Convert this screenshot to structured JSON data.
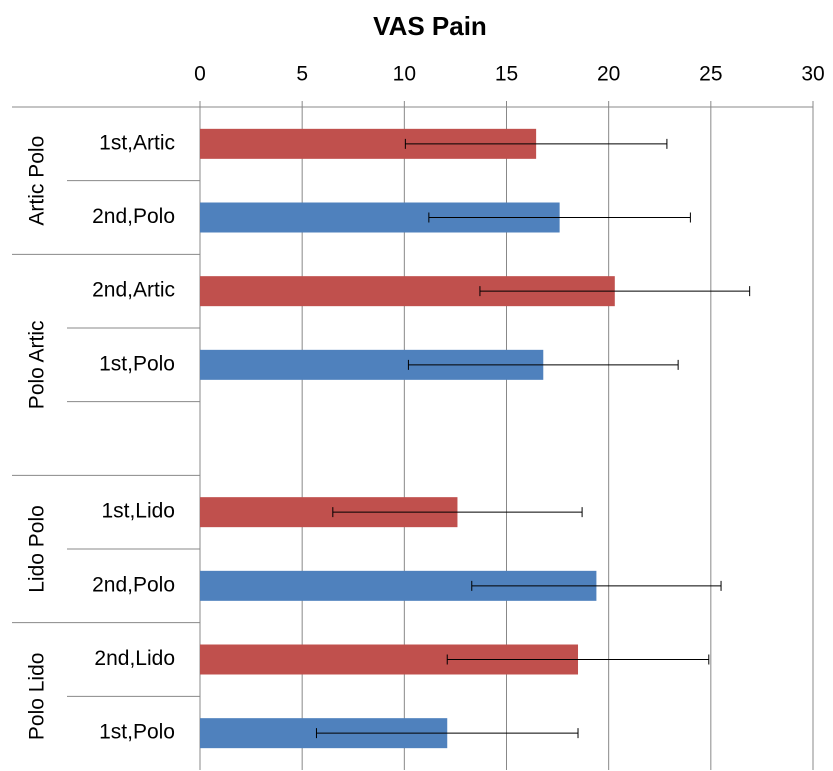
{
  "chart_data": {
    "type": "bar",
    "orientation": "horizontal",
    "title": "VAS Pain",
    "categories": [
      "1st,Artic",
      "2nd,Polo",
      "2nd,Artic",
      "1st,Polo",
      null,
      "1st,Lido",
      "2nd,Polo",
      "2nd,Lido",
      "1st,Polo"
    ],
    "groups": [
      {
        "name": "Artic Polo",
        "size": 2
      },
      {
        "name": "Polo Artic",
        "size": 3
      },
      {
        "name": "Lido Polo",
        "size": 2
      },
      {
        "name": "Polo Lido",
        "size": 2
      }
    ],
    "values": [
      16.45,
      17.6,
      20.3,
      16.8,
      null,
      12.6,
      19.4,
      18.5,
      12.1
    ],
    "errors": [
      6.4,
      6.4,
      6.6,
      6.6,
      null,
      6.1,
      6.1,
      6.4,
      6.4
    ],
    "colors": [
      "#c0504d",
      "#4f81bd",
      "#c0504d",
      "#4f81bd",
      null,
      "#c0504d",
      "#4f81bd",
      "#c0504d",
      "#4f81bd"
    ],
    "xlim": [
      0,
      30
    ],
    "xticks": [
      0,
      5,
      10,
      15,
      20,
      25,
      30
    ],
    "grid": true
  }
}
